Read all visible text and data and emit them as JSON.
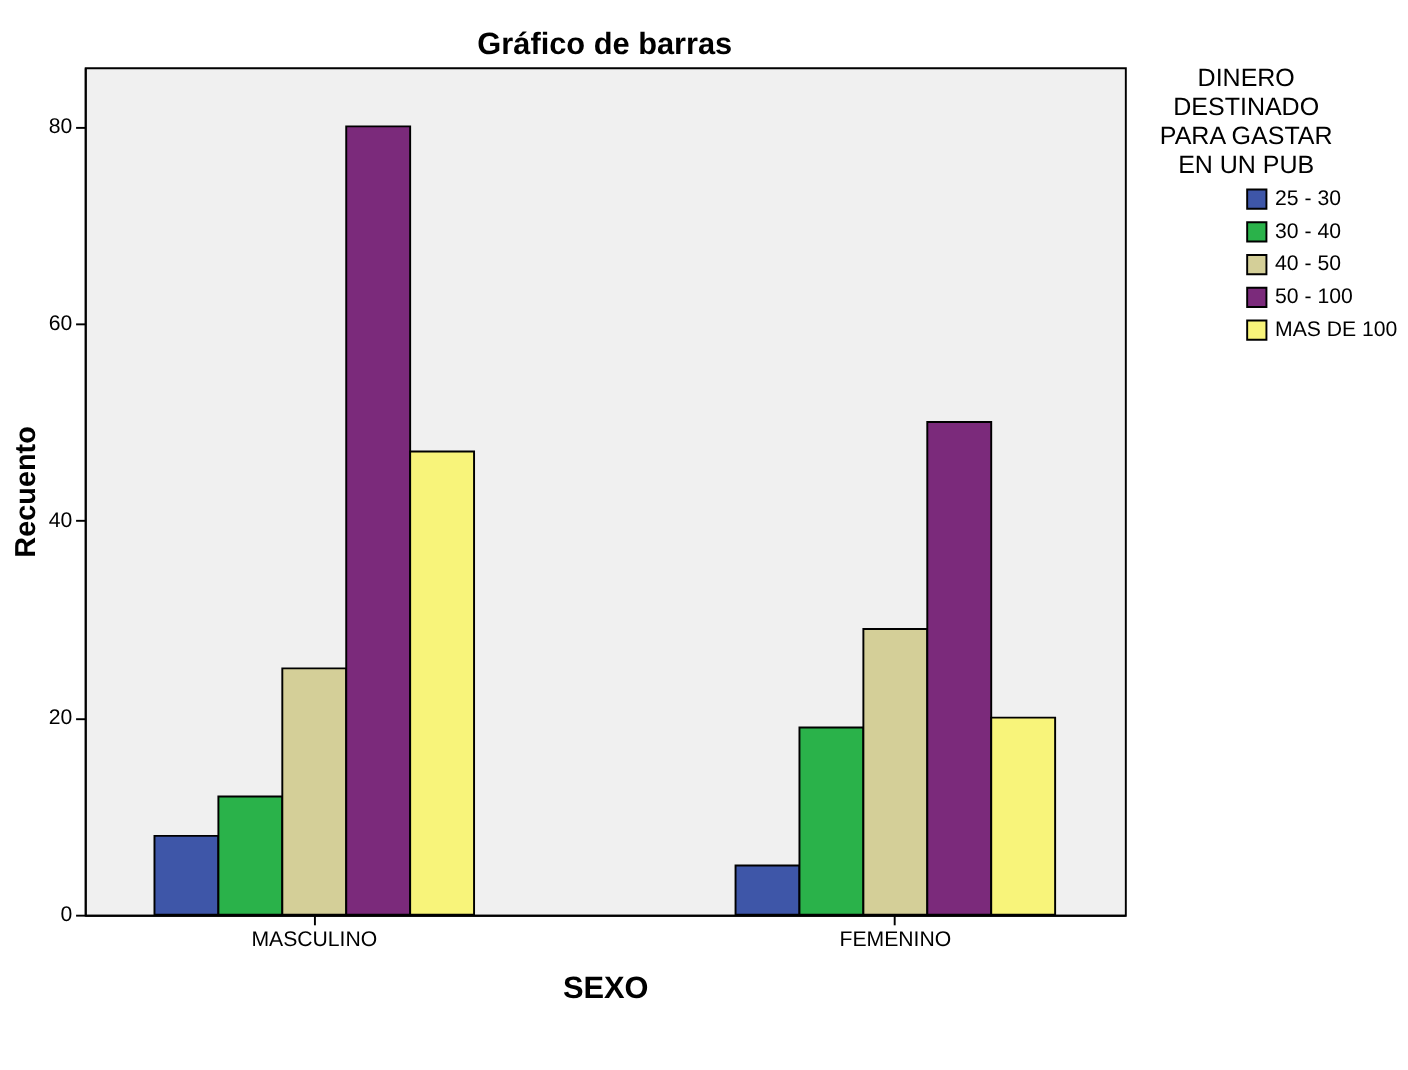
{
  "chart_data": {
    "type": "bar",
    "title": "Gráfico de barras",
    "xlabel": "SEXO",
    "ylabel": "Recuento",
    "legend_title": "DINERO DESTINADO PARA GASTAR EN UN PUB",
    "categories": [
      "MASCULINO",
      "FEMENINO"
    ],
    "series": [
      {
        "name": "25 - 30",
        "color": "#3e56a8",
        "values": [
          8,
          5
        ]
      },
      {
        "name": "30 - 40",
        "color": "#2ab24a",
        "values": [
          12,
          19
        ]
      },
      {
        "name": "40 - 50",
        "color": "#d4cf98",
        "values": [
          25,
          29
        ]
      },
      {
        "name": "50 - 100",
        "color": "#7b2a7b",
        "values": [
          80,
          50
        ]
      },
      {
        "name": "MAS DE 100",
        "color": "#f8f47a",
        "values": [
          47,
          20
        ]
      }
    ],
    "ylim": [
      0,
      86
    ],
    "yticks": [
      0,
      20,
      40,
      60,
      80
    ],
    "grid": false,
    "legend": "right"
  }
}
